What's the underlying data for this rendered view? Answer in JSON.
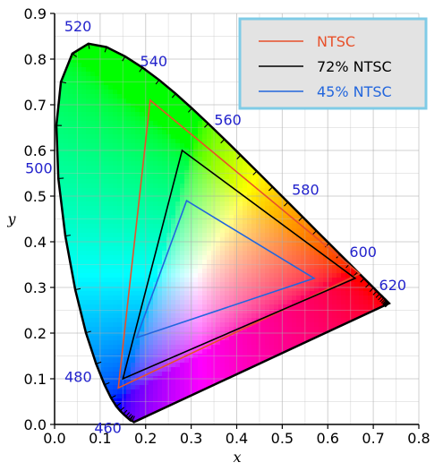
{
  "chart_data": {
    "type": "line",
    "title": "",
    "xlabel": "x",
    "ylabel": "y",
    "xlim": [
      0.0,
      0.8
    ],
    "ylim": [
      0.0,
      0.9
    ],
    "x_ticks": [
      "0.0",
      "0.1",
      "0.2",
      "0.3",
      "0.4",
      "0.5",
      "0.6",
      "0.7",
      "0.8"
    ],
    "y_ticks": [
      "0.0",
      "0.1",
      "0.2",
      "0.3",
      "0.4",
      "0.5",
      "0.6",
      "0.7",
      "0.8",
      "0.9"
    ],
    "grid": true,
    "legend_position": "top-right",
    "spectral_locus": [
      [
        0.1741,
        0.005
      ],
      [
        0.1703,
        0.0079
      ],
      [
        0.1666,
        0.0089
      ],
      [
        0.1644,
        0.0109
      ],
      [
        0.1611,
        0.0138
      ],
      [
        0.1566,
        0.0177
      ],
      [
        0.151,
        0.0227
      ],
      [
        0.144,
        0.0297
      ],
      [
        0.1355,
        0.0399
      ],
      [
        0.1241,
        0.0578
      ],
      [
        0.1096,
        0.0868
      ],
      [
        0.0913,
        0.1327
      ],
      [
        0.0687,
        0.2007
      ],
      [
        0.0454,
        0.295
      ],
      [
        0.0235,
        0.4127
      ],
      [
        0.0082,
        0.5384
      ],
      [
        0.0039,
        0.6548
      ],
      [
        0.0139,
        0.7502
      ],
      [
        0.0389,
        0.812
      ],
      [
        0.0743,
        0.8338
      ],
      [
        0.1142,
        0.8262
      ],
      [
        0.1547,
        0.8059
      ],
      [
        0.1929,
        0.7816
      ],
      [
        0.2296,
        0.7543
      ],
      [
        0.2658,
        0.7243
      ],
      [
        0.3016,
        0.6923
      ],
      [
        0.3373,
        0.6589
      ],
      [
        0.3731,
        0.6245
      ],
      [
        0.4087,
        0.5896
      ],
      [
        0.4441,
        0.5547
      ],
      [
        0.4788,
        0.5202
      ],
      [
        0.5125,
        0.4866
      ],
      [
        0.5448,
        0.4544
      ],
      [
        0.5752,
        0.4242
      ],
      [
        0.6029,
        0.3965
      ],
      [
        0.627,
        0.3725
      ],
      [
        0.6482,
        0.3514
      ],
      [
        0.6658,
        0.334
      ],
      [
        0.6801,
        0.3197
      ],
      [
        0.6915,
        0.3083
      ],
      [
        0.7006,
        0.2993
      ],
      [
        0.7079,
        0.292
      ],
      [
        0.714,
        0.2859
      ],
      [
        0.719,
        0.2809
      ],
      [
        0.723,
        0.277
      ],
      [
        0.726,
        0.274
      ],
      [
        0.7283,
        0.2717
      ],
      [
        0.73,
        0.27
      ],
      [
        0.7311,
        0.2689
      ],
      [
        0.732,
        0.268
      ],
      [
        0.7327,
        0.2673
      ],
      [
        0.7334,
        0.2666
      ],
      [
        0.734,
        0.266
      ],
      [
        0.7344,
        0.2656
      ],
      [
        0.7346,
        0.2654
      ],
      [
        0.7347,
        0.2653
      ]
    ],
    "wavelength_labels": [
      {
        "text": "460",
        "x": 0.144,
        "y": 0.0297
      },
      {
        "text": "480",
        "x": 0.0913,
        "y": 0.1327
      },
      {
        "text": "500",
        "x": 0.0082,
        "y": 0.5384
      },
      {
        "text": "520",
        "x": 0.0743,
        "y": 0.8338
      },
      {
        "text": "540",
        "x": 0.2296,
        "y": 0.7543
      },
      {
        "text": "560",
        "x": 0.3731,
        "y": 0.6245
      },
      {
        "text": "580",
        "x": 0.5125,
        "y": 0.4866
      },
      {
        "text": "600",
        "x": 0.627,
        "y": 0.3725
      },
      {
        "text": "620",
        "x": 0.6915,
        "y": 0.3083
      }
    ],
    "series": [
      {
        "name": "NTSC",
        "color": "#e8502a",
        "points": [
          [
            0.67,
            0.33
          ],
          [
            0.21,
            0.71
          ],
          [
            0.14,
            0.08
          ]
        ]
      },
      {
        "name": "72% NTSC",
        "color": "#000000",
        "points": [
          [
            0.66,
            0.32
          ],
          [
            0.28,
            0.6
          ],
          [
            0.15,
            0.1
          ]
        ]
      },
      {
        "name": "45% NTSC",
        "color": "#2266dd",
        "points": [
          [
            0.57,
            0.32
          ],
          [
            0.29,
            0.49
          ],
          [
            0.18,
            0.19
          ]
        ]
      }
    ]
  }
}
